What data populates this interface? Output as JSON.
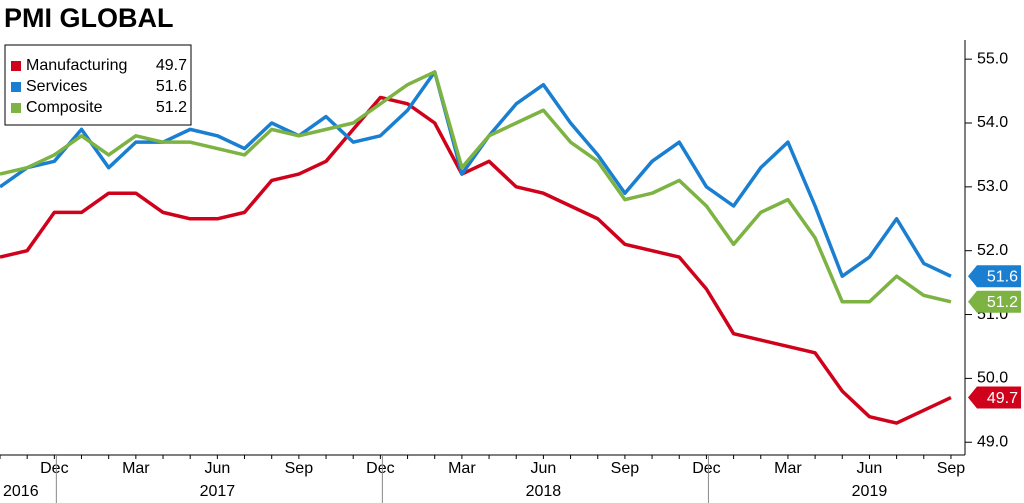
{
  "chart_data": {
    "type": "line",
    "title": "PMI  GLOBAL",
    "categories": [
      null,
      null,
      "Dec",
      null,
      null,
      "Mar",
      null,
      null,
      "Jun",
      null,
      null,
      "Sep",
      null,
      null,
      "Dec",
      null,
      null,
      "Mar",
      null,
      null,
      "Jun",
      null,
      null,
      "Sep",
      null,
      null,
      "Dec",
      null,
      null,
      "Mar",
      null,
      null,
      "Jun",
      null,
      null,
      "Sep"
    ],
    "year_labels": [
      "2016",
      "2017",
      "2018",
      "2019"
    ],
    "series": [
      {
        "name": "Manufacturing",
        "color": "#d0021b",
        "values": [
          51.9,
          52.0,
          52.6,
          52.6,
          52.9,
          52.9,
          52.6,
          52.5,
          52.5,
          52.6,
          53.1,
          53.2,
          53.4,
          53.9,
          54.4,
          54.3,
          54.0,
          53.2,
          53.4,
          53.0,
          52.9,
          52.7,
          52.5,
          52.1,
          52.0,
          51.9,
          51.4,
          50.7,
          50.6,
          50.5,
          50.4,
          49.8,
          49.4,
          49.3,
          49.5,
          49.7
        ]
      },
      {
        "name": "Services",
        "color": "#1a7fd0",
        "values": [
          53.0,
          53.3,
          53.4,
          53.9,
          53.3,
          53.7,
          53.7,
          53.9,
          53.8,
          53.6,
          54.0,
          53.8,
          54.1,
          53.7,
          53.8,
          54.2,
          54.8,
          53.2,
          53.8,
          54.3,
          54.6,
          54.0,
          53.5,
          52.9,
          53.4,
          53.7,
          53.0,
          52.7,
          53.3,
          53.7,
          52.7,
          51.6,
          51.9,
          52.5,
          51.8,
          51.6
        ]
      },
      {
        "name": "Composite",
        "color": "#7cb342",
        "values": [
          53.2,
          53.3,
          53.5,
          53.8,
          53.5,
          53.8,
          53.7,
          53.7,
          53.6,
          53.5,
          53.9,
          53.8,
          53.9,
          54.0,
          54.3,
          54.6,
          54.8,
          53.3,
          53.8,
          54.0,
          54.2,
          53.7,
          53.4,
          52.8,
          52.9,
          53.1,
          52.7,
          52.1,
          52.6,
          52.8,
          52.2,
          51.2,
          51.2,
          51.6,
          51.3,
          51.2
        ]
      }
    ],
    "ylim": [
      48.8,
      55.3
    ],
    "yticks": [
      {
        "value": 49,
        "label": "49.0"
      },
      {
        "value": 50,
        "label": "50.0"
      },
      {
        "value": 51,
        "label": "51.0"
      },
      {
        "value": 52,
        "label": "52.0"
      },
      {
        "value": 53,
        "label": "53.0"
      },
      {
        "value": 54,
        "label": "54.0"
      },
      {
        "value": 55,
        "label": "55.0"
      }
    ],
    "legend": "upper left"
  }
}
